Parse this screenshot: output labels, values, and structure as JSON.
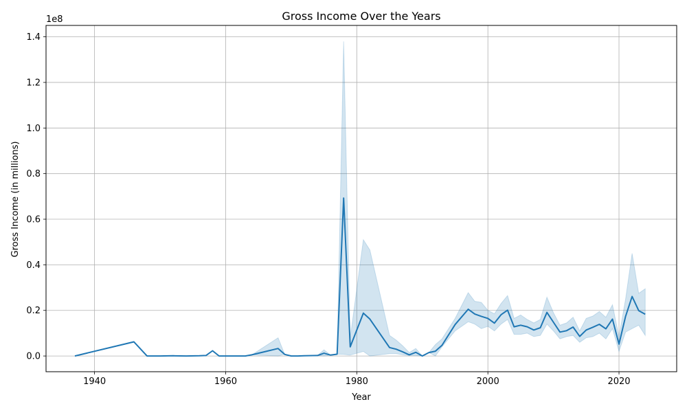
{
  "chart_data": {
    "type": "line",
    "title": "Gross Income Over the Years",
    "xlabel": "Year",
    "ylabel": "Gross Income (in millions)",
    "y_offset_label": "1e8",
    "xlim": [
      1932.6,
      2028.8
    ],
    "ylim": [
      -6900000,
      145000000
    ],
    "x_ticks": [
      1940,
      1960,
      1980,
      2000,
      2020
    ],
    "x_tick_labels": [
      "1940",
      "1960",
      "1980",
      "2000",
      "2020"
    ],
    "y_ticks": [
      0,
      20000000,
      40000000,
      60000000,
      80000000,
      100000000,
      120000000,
      140000000
    ],
    "y_tick_labels": [
      "0.0",
      "0.2",
      "0.4",
      "0.6",
      "0.8",
      "1.0",
      "1.2",
      "1.4"
    ],
    "grid": true,
    "colors": {
      "line": "#1f77b4",
      "band": "#1f77b4"
    },
    "series": [
      {
        "x": [
          1937,
          1946,
          1948,
          1950,
          1952,
          1954,
          1956,
          1957,
          1958,
          1959,
          1961,
          1963,
          1964,
          1968,
          1969,
          1970,
          1971,
          1972,
          1974,
          1975,
          1976,
          1977,
          1978,
          1979,
          1981,
          1982,
          1985,
          1986,
          1987,
          1988,
          1989,
          1990,
          1991,
          1992,
          1993,
          1995,
          1997,
          1998,
          1999,
          2000,
          2001,
          2002,
          2003,
          2004,
          2005,
          2006,
          2007,
          2008,
          2009,
          2010,
          2011,
          2012,
          2013,
          2014,
          2015,
          2016,
          2017,
          2018,
          2019,
          2020,
          2021,
          2022,
          2023,
          2024
        ],
        "y": [
          0,
          6200000,
          0,
          0,
          100000,
          0,
          100000,
          200000,
          2300000,
          0,
          0,
          0,
          500000,
          3300000,
          700000,
          0,
          0,
          100000,
          200000,
          1200000,
          400000,
          800000,
          69300000,
          4000000,
          18800000,
          16200000,
          3700000,
          3000000,
          1800000,
          500000,
          1600000,
          0,
          1500000,
          2100000,
          4700000,
          13800000,
          20500000,
          18400000,
          17400000,
          16500000,
          14400000,
          18100000,
          20100000,
          12800000,
          13500000,
          12800000,
          11400000,
          12400000,
          19100000,
          14800000,
          10500000,
          11100000,
          12700000,
          8600000,
          11400000,
          12600000,
          13900000,
          11900000,
          16200000,
          5200000,
          17400000,
          26100000,
          19900000,
          18300000
        ],
        "lower": [
          0,
          6000000,
          0,
          0,
          100000,
          0,
          100000,
          200000,
          2300000,
          0,
          0,
          0,
          500000,
          0,
          700000,
          0,
          0,
          100000,
          200000,
          0,
          400000,
          800000,
          700000,
          400000,
          2000000,
          0,
          1000000,
          1000000,
          500000,
          200000,
          200000,
          0,
          1500000,
          0,
          4000000,
          11000000,
          15000000,
          14000000,
          12000000,
          13000000,
          11000000,
          14000000,
          16000000,
          9500000,
          9500000,
          10000000,
          8500000,
          9000000,
          14000000,
          11000000,
          7500000,
          8500000,
          9000000,
          6000000,
          8000000,
          8500000,
          10000000,
          7500000,
          12000000,
          2000000,
          10500000,
          12000000,
          13500000,
          9000000
        ],
        "upper": [
          0,
          6400000,
          0,
          0,
          100000,
          0,
          100000,
          200000,
          2300000,
          0,
          0,
          0,
          500000,
          8000000,
          700000,
          0,
          0,
          100000,
          200000,
          2700000,
          400000,
          800000,
          138000000,
          8000000,
          51000000,
          46500000,
          9000000,
          7000000,
          4500000,
          1500000,
          3300000,
          0,
          1500000,
          5000000,
          7500000,
          16500000,
          27800000,
          24000000,
          23500000,
          20000000,
          18500000,
          23000000,
          26500000,
          16500000,
          18000000,
          16000000,
          14500000,
          16000000,
          25800000,
          19000000,
          13500000,
          14500000,
          17000000,
          11000000,
          16500000,
          17500000,
          19500000,
          17000000,
          22500000,
          8500000,
          25000000,
          45000000,
          27500000,
          29500000
        ]
      }
    ]
  }
}
